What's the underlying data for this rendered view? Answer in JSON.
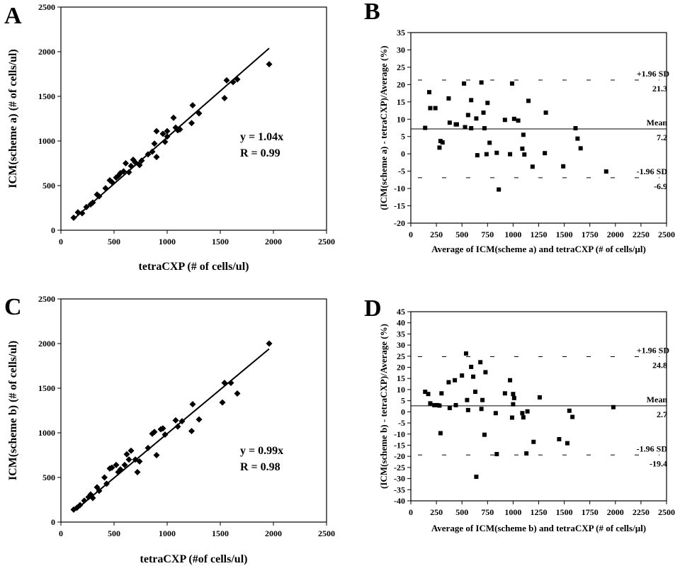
{
  "panels": [
    {
      "letter": "A",
      "type": "scatter",
      "xlabel": "tetraCXP (# of cells/ul)",
      "ylabel": "ICM(scheme a) (# of cells/ul)",
      "xlim": [
        0,
        2500
      ],
      "ylim": [
        0,
        2500
      ],
      "xticks": [
        0,
        500,
        1000,
        1500,
        2000,
        2500
      ],
      "yticks": [
        0,
        500,
        1000,
        1500,
        2000,
        2500
      ],
      "equation": "y = 1.04x",
      "r": "R = 0.99",
      "fit_line": {
        "slope": 1.04,
        "x": [
          120,
          1960
        ]
      }
    },
    {
      "letter": "B",
      "type": "scatter",
      "xlabel": "Average of ICM(scheme a) and tetraCXP (# of cells/µl)",
      "ylabel": "(ICM(scheme a) - tetraCXP)/Average (%)",
      "xlim": [
        0,
        2500
      ],
      "ylim": [
        -20,
        35
      ],
      "xticks": [
        0,
        250,
        500,
        750,
        1000,
        1250,
        1500,
        1750,
        2000,
        2250,
        2500
      ],
      "yticks": [
        -20,
        -15,
        -10,
        -5,
        0,
        5,
        10,
        15,
        20,
        25,
        30,
        35
      ],
      "mean": 7.2,
      "upper": 21.3,
      "lower": -6.9,
      "mean_label": "Mean",
      "mean_value": "7.2",
      "upper_label": "+1.96 SD",
      "upper_value": "21.3",
      "lower_label": "-1.96 SD",
      "lower_value": "-6.9"
    },
    {
      "letter": "C",
      "type": "scatter",
      "xlabel": "tetraCXP (#of cells/ul)",
      "ylabel": "ICM(scheme b) (# of cells/ul)",
      "xlim": [
        0,
        2500
      ],
      "ylim": [
        0,
        2500
      ],
      "xticks": [
        0,
        500,
        1000,
        1500,
        2000,
        2500
      ],
      "yticks": [
        0,
        500,
        1000,
        1500,
        2000,
        2500
      ],
      "equation": "y = 0.99x",
      "r": "R = 0.98",
      "fit_line": {
        "slope": 0.99,
        "x": [
          120,
          1960
        ]
      }
    },
    {
      "letter": "D",
      "type": "scatter",
      "xlabel": "Average of ICM(scheme b) and tetraCXP (# of cells/µl)",
      "ylabel": "(ICM(scheme b) - tetraCXP)/Average (%)",
      "xlim": [
        0,
        2500
      ],
      "ylim": [
        -40,
        45
      ],
      "xticks": [
        0,
        250,
        500,
        750,
        1000,
        1250,
        1500,
        1750,
        2000,
        2250,
        2500
      ],
      "yticks": [
        -40,
        -35,
        -30,
        -25,
        -20,
        -15,
        -10,
        -5,
        0,
        5,
        10,
        15,
        20,
        25,
        30,
        35,
        40,
        45
      ],
      "mean": 2.7,
      "upper": 24.8,
      "lower": -19.4,
      "mean_label": "Mean",
      "mean_value": "2.7",
      "upper_label": "+1.96 SD",
      "upper_value": "24.8",
      "lower_label": "-1.96 SD",
      "lower_value": "-19.4"
    }
  ],
  "chart_data": [
    {
      "type": "scatter",
      "panel": "A",
      "xlabel": "tetraCXP (# of cells/ul)",
      "ylabel": "ICM(scheme a) (# of cells/ul)",
      "xlim": [
        0,
        2500
      ],
      "ylim": [
        0,
        2500
      ],
      "annotations": [
        "y = 1.04x",
        "R = 0.99"
      ],
      "points": [
        [
          120,
          140
        ],
        [
          160,
          200
        ],
        [
          200,
          190
        ],
        [
          240,
          260
        ],
        [
          280,
          290
        ],
        [
          300,
          310
        ],
        [
          340,
          400
        ],
        [
          360,
          380
        ],
        [
          420,
          470
        ],
        [
          460,
          560
        ],
        [
          480,
          540
        ],
        [
          520,
          590
        ],
        [
          540,
          610
        ],
        [
          560,
          640
        ],
        [
          590,
          660
        ],
        [
          610,
          750
        ],
        [
          640,
          650
        ],
        [
          660,
          720
        ],
        [
          680,
          790
        ],
        [
          700,
          760
        ],
        [
          740,
          730
        ],
        [
          760,
          780
        ],
        [
          820,
          850
        ],
        [
          860,
          880
        ],
        [
          880,
          970
        ],
        [
          900,
          1110
        ],
        [
          900,
          820
        ],
        [
          960,
          1080
        ],
        [
          980,
          990
        ],
        [
          1000,
          1050
        ],
        [
          1000,
          1110
        ],
        [
          1060,
          1260
        ],
        [
          1080,
          1150
        ],
        [
          1100,
          1120
        ],
        [
          1120,
          1130
        ],
        [
          1230,
          1200
        ],
        [
          1240,
          1400
        ],
        [
          1300,
          1310
        ],
        [
          1540,
          1480
        ],
        [
          1560,
          1680
        ],
        [
          1620,
          1660
        ],
        [
          1660,
          1690
        ],
        [
          1960,
          1860
        ]
      ]
    },
    {
      "type": "scatter",
      "panel": "B",
      "xlabel": "Average of ICM(scheme a) and tetraCXP (# of cells/µl)",
      "ylabel": "(ICM(scheme a) - tetraCXP)/Average (%)",
      "xlim": [
        0,
        2500
      ],
      "ylim": [
        -20,
        35
      ],
      "reference_lines": {
        "mean": 7.2,
        "upper_1.96SD": 21.3,
        "lower_1.96SD": -6.9
      },
      "points": [
        [
          140,
          7.5
        ],
        [
          180,
          17.8
        ],
        [
          190,
          13.2
        ],
        [
          240,
          13.2
        ],
        [
          280,
          1.8
        ],
        [
          290,
          3.7
        ],
        [
          310,
          3.3
        ],
        [
          370,
          16
        ],
        [
          380,
          9
        ],
        [
          440,
          8.5
        ],
        [
          450,
          8.5
        ],
        [
          520,
          20.3
        ],
        [
          530,
          7.7
        ],
        [
          560,
          11.2
        ],
        [
          590,
          7.4
        ],
        [
          590,
          15.5
        ],
        [
          640,
          10.2
        ],
        [
          650,
          -0.4
        ],
        [
          690,
          20.6
        ],
        [
          710,
          11.9
        ],
        [
          720,
          7.4
        ],
        [
          740,
          -0.1
        ],
        [
          750,
          14.7
        ],
        [
          770,
          3.2
        ],
        [
          840,
          0.3
        ],
        [
          860,
          -10.3
        ],
        [
          920,
          9.8
        ],
        [
          970,
          -0.1
        ],
        [
          990,
          20.3
        ],
        [
          1010,
          10.1
        ],
        [
          1050,
          9.6
        ],
        [
          1090,
          1.5
        ],
        [
          1100,
          5.5
        ],
        [
          1110,
          -0.2
        ],
        [
          1150,
          15.3
        ],
        [
          1190,
          -3.7
        ],
        [
          1310,
          0.2
        ],
        [
          1320,
          11.9
        ],
        [
          1490,
          -3.6
        ],
        [
          1610,
          7.4
        ],
        [
          1630,
          4.4
        ],
        [
          1660,
          1.6
        ],
        [
          1910,
          -5.1
        ]
      ]
    },
    {
      "type": "scatter",
      "panel": "C",
      "xlabel": "tetraCXP (#of cells/ul)",
      "ylabel": "ICM(scheme b) (# of cells/ul)",
      "xlim": [
        0,
        2500
      ],
      "ylim": [
        0,
        2500
      ],
      "annotations": [
        "y = 0.99x",
        "R = 0.98"
      ],
      "points": [
        [
          120,
          140
        ],
        [
          150,
          160
        ],
        [
          180,
          190
        ],
        [
          220,
          240
        ],
        [
          260,
          280
        ],
        [
          280,
          310
        ],
        [
          300,
          270
        ],
        [
          340,
          390
        ],
        [
          360,
          350
        ],
        [
          410,
          500
        ],
        [
          430,
          430
        ],
        [
          460,
          600
        ],
        [
          480,
          610
        ],
        [
          520,
          640
        ],
        [
          540,
          560
        ],
        [
          560,
          590
        ],
        [
          600,
          640
        ],
        [
          620,
          760
        ],
        [
          640,
          700
        ],
        [
          660,
          800
        ],
        [
          700,
          700
        ],
        [
          720,
          560
        ],
        [
          740,
          680
        ],
        [
          820,
          830
        ],
        [
          860,
          990
        ],
        [
          880,
          1010
        ],
        [
          900,
          750
        ],
        [
          940,
          1040
        ],
        [
          960,
          1050
        ],
        [
          980,
          980
        ],
        [
          1080,
          1140
        ],
        [
          1100,
          1070
        ],
        [
          1140,
          1130
        ],
        [
          1230,
          1020
        ],
        [
          1240,
          1320
        ],
        [
          1300,
          1150
        ],
        [
          1520,
          1340
        ],
        [
          1540,
          1560
        ],
        [
          1600,
          1560
        ],
        [
          1660,
          1440
        ],
        [
          1960,
          2000
        ]
      ]
    },
    {
      "type": "scatter",
      "panel": "D",
      "xlabel": "Average of ICM(scheme b) and tetraCXP (# of cells/µl)",
      "ylabel": "(ICM(scheme b) - tetraCXP)/Average (%)",
      "xlim": [
        0,
        2500
      ],
      "ylim": [
        -40,
        45
      ],
      "reference_lines": {
        "mean": 2.7,
        "upper_1.96SD": 24.8,
        "lower_1.96SD": -19.4
      },
      "points": [
        [
          140,
          9
        ],
        [
          170,
          8
        ],
        [
          190,
          3.8
        ],
        [
          230,
          3
        ],
        [
          260,
          3
        ],
        [
          280,
          2.8
        ],
        [
          290,
          -9.6
        ],
        [
          300,
          8.3
        ],
        [
          370,
          13.3
        ],
        [
          380,
          1.7
        ],
        [
          430,
          14.2
        ],
        [
          440,
          3
        ],
        [
          500,
          16.3
        ],
        [
          540,
          26.2
        ],
        [
          550,
          5.3
        ],
        [
          560,
          0.8
        ],
        [
          590,
          20.2
        ],
        [
          610,
          15.8
        ],
        [
          630,
          9
        ],
        [
          640,
          -29.2
        ],
        [
          680,
          22.3
        ],
        [
          690,
          1.3
        ],
        [
          700,
          5.3
        ],
        [
          720,
          -10.3
        ],
        [
          730,
          17.8
        ],
        [
          830,
          -0.6
        ],
        [
          840,
          -19
        ],
        [
          920,
          8.3
        ],
        [
          970,
          14.2
        ],
        [
          990,
          -2.6
        ],
        [
          1000,
          3.4
        ],
        [
          1000,
          8
        ],
        [
          1010,
          6.2
        ],
        [
          1090,
          -0.6
        ],
        [
          1100,
          -2.5
        ],
        [
          1130,
          -18.7
        ],
        [
          1140,
          0.2
        ],
        [
          1200,
          -13.5
        ],
        [
          1260,
          6.5
        ],
        [
          1450,
          -12.3
        ],
        [
          1530,
          -14.1
        ],
        [
          1550,
          0.5
        ],
        [
          1580,
          -2.3
        ],
        [
          1980,
          2.1
        ]
      ]
    }
  ]
}
